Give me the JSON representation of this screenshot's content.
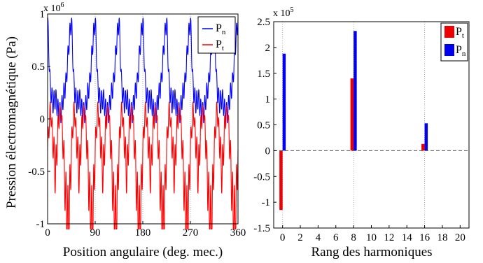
{
  "chart_data": [
    {
      "type": "line",
      "title": "",
      "ylabel": "Pression électromagnétique (Pa)",
      "xlabel": "Position angulaire (deg. mec.)",
      "xlim": [
        0,
        360
      ],
      "ylim": [
        -1.0,
        1.0
      ],
      "x_ticks": [
        "0",
        "90",
        "180",
        "270",
        "360"
      ],
      "y_ticks": [
        "1",
        "0.5",
        "0",
        "-0.5",
        "-1"
      ],
      "multiplier": "x 10",
      "multiplier_exp": "6",
      "grid": "dotted at x ticks",
      "legend": {
        "position": "top-right",
        "entries": [
          {
            "name": "P",
            "sub": "n",
            "color": "#0000ff"
          },
          {
            "name": "P",
            "sub": "t",
            "color": "#ff0000"
          }
        ]
      },
      "series": [
        {
          "name": "Pn",
          "color": "#0000ff",
          "description": "periodic radial pressure, 8 periods over 360 deg",
          "period_deg": 45,
          "x_sample": [
            0,
            5,
            10,
            15,
            20,
            25,
            30,
            35,
            40,
            45
          ],
          "y_sample": [
            0.95,
            0.3,
            0.15,
            0.2,
            0.08,
            0.05,
            0.22,
            0.35,
            0.7,
            0.95
          ]
        },
        {
          "name": "Pt",
          "color": "#ff0000",
          "description": "periodic tangential pressure, 8 periods over 360 deg",
          "period_deg": 45,
          "x_sample": [
            0,
            5,
            10,
            15,
            20,
            25,
            30,
            35,
            40,
            45
          ],
          "y_sample": [
            -0.3,
            0.12,
            -0.2,
            -0.55,
            -0.05,
            0.1,
            -0.3,
            -0.85,
            -1.05,
            -0.3
          ]
        }
      ]
    },
    {
      "type": "bar",
      "title": "",
      "xlabel": "Rang des harmoniques",
      "ylabel": "",
      "xlim": [
        -1,
        21
      ],
      "ylim": [
        -1.5,
        2.5
      ],
      "x_ticks": [
        "0",
        "2",
        "4",
        "6",
        "8",
        "10",
        "12",
        "14",
        "16",
        "18",
        "20"
      ],
      "y_ticks": [
        "2.5",
        "2",
        "1.5",
        "1",
        "0.5",
        "0",
        "-0.5",
        "-1",
        "-1.5"
      ],
      "multiplier": "x 10",
      "multiplier_exp": "5",
      "grid": "dotted at harmonics 0, 8, 16",
      "legend": {
        "position": "top-right",
        "entries": [
          {
            "name": "P",
            "sub": "t",
            "color": "#ee0000"
          },
          {
            "name": "P",
            "sub": "n",
            "color": "#0000ee"
          }
        ]
      },
      "categories": [
        0,
        8,
        16
      ],
      "series": [
        {
          "name": "Pt",
          "color": "#ee0000",
          "values": [
            -1.15,
            1.4,
            0.13
          ]
        },
        {
          "name": "Pn",
          "color": "#0000ee",
          "values": [
            1.88,
            2.32,
            0.53
          ]
        }
      ]
    }
  ]
}
